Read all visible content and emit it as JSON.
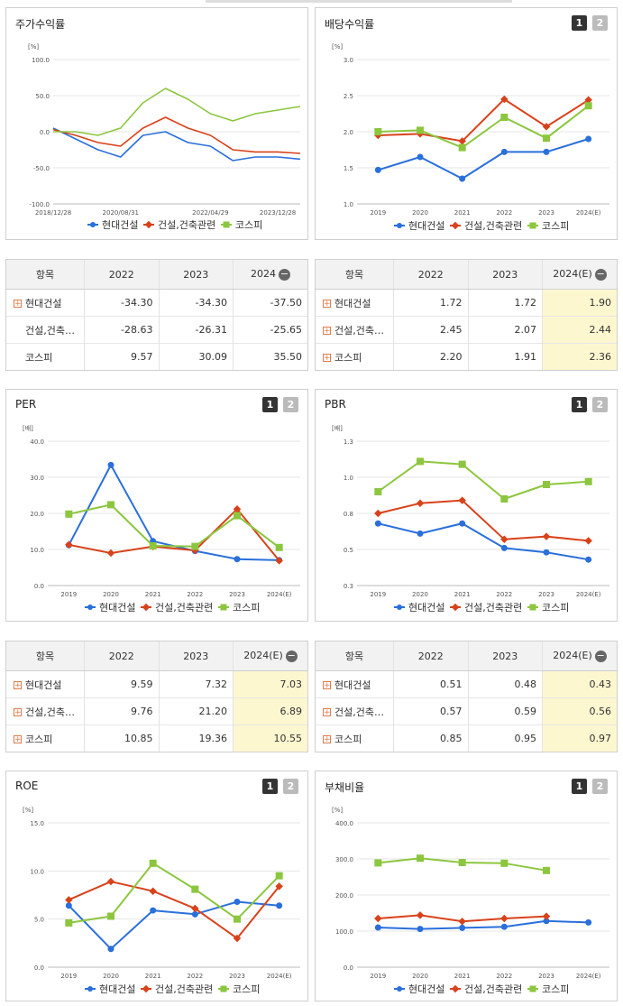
{
  "colors": {
    "hyundai": "#2a6fdb",
    "construction": "#d8421b",
    "kospi": "#8cc63f"
  },
  "legend": [
    "현대건설",
    "건설,건축관련",
    "코스피"
  ],
  "charts": {
    "stock": {
      "title": "주가수익률",
      "unit": "[%]",
      "yticks": [
        "100.0",
        "50.0",
        "0.0",
        "-50.0",
        "-100.0"
      ],
      "xticks": [
        "2018/12/28",
        "2020/08/31",
        "2022/04/29",
        "2023/12/28"
      ]
    },
    "dividend": {
      "title": "배당수익률",
      "unit": "[%]",
      "yticks": [
        "3.0",
        "2.5",
        "2.0",
        "1.5",
        "1.0"
      ],
      "xticks": [
        "2019",
        "2020",
        "2021",
        "2022",
        "2023",
        "2024(E)"
      ]
    },
    "per": {
      "title": "PER",
      "unit": "[배]",
      "yticks": [
        "40.0",
        "30.0",
        "20.0",
        "10.0",
        "0.0"
      ],
      "xticks": [
        "2019",
        "2020",
        "2021",
        "2022",
        "2023",
        "2024(E)"
      ]
    },
    "pbr": {
      "title": "PBR",
      "unit": "[배]",
      "yticks": [
        "1.3",
        "1.0",
        "0.8",
        "0.5",
        "0.3"
      ],
      "xticks": [
        "2019",
        "2020",
        "2021",
        "2022",
        "2023",
        "2024(E)"
      ]
    },
    "roe": {
      "title": "ROE",
      "unit": "[%]",
      "yticks": [
        "15.0",
        "10.0",
        "5.0",
        "0.0"
      ],
      "xticks": [
        "2019",
        "2020",
        "2021",
        "2022",
        "2023",
        "2024(E)"
      ]
    },
    "debt": {
      "title": "부채비율",
      "unit": "[%]",
      "yticks": [
        "400.0",
        "300.0",
        "200.0",
        "100.0",
        "0.0"
      ],
      "xticks": [
        "2019",
        "2020",
        "2021",
        "2022",
        "2023",
        "2024(E)"
      ]
    }
  },
  "buttons": {
    "one": "1",
    "two": "2"
  },
  "tables": {
    "stock": {
      "headers": [
        "항목",
        "2022",
        "2023",
        "2024"
      ],
      "rows": [
        {
          "name": "현대건설",
          "values": [
            "-34.30",
            "-34.30",
            "-37.50"
          ]
        },
        {
          "name": "건설,건축…",
          "values": [
            "-28.63",
            "-26.31",
            "-25.65"
          ]
        },
        {
          "name": "코스피",
          "values": [
            "9.57",
            "30.09",
            "35.50"
          ]
        }
      ]
    },
    "dividend": {
      "headers": [
        "항목",
        "2022",
        "2023",
        "2024(E)"
      ],
      "rows": [
        {
          "name": "현대건설",
          "values": [
            "1.72",
            "1.72",
            "1.90"
          ]
        },
        {
          "name": "건설,건축…",
          "values": [
            "2.45",
            "2.07",
            "2.44"
          ]
        },
        {
          "name": "코스피",
          "values": [
            "2.20",
            "1.91",
            "2.36"
          ]
        }
      ]
    },
    "per": {
      "headers": [
        "항목",
        "2022",
        "2023",
        "2024(E)"
      ],
      "rows": [
        {
          "name": "현대건설",
          "values": [
            "9.59",
            "7.32",
            "7.03"
          ]
        },
        {
          "name": "건설,건축…",
          "values": [
            "9.76",
            "21.20",
            "6.89"
          ]
        },
        {
          "name": "코스피",
          "values": [
            "10.85",
            "19.36",
            "10.55"
          ]
        }
      ]
    },
    "pbr": {
      "headers": [
        "항목",
        "2022",
        "2023",
        "2024(E)"
      ],
      "rows": [
        {
          "name": "현대건설",
          "values": [
            "0.51",
            "0.48",
            "0.43"
          ]
        },
        {
          "name": "건설,건축…",
          "values": [
            "0.57",
            "0.59",
            "0.56"
          ]
        },
        {
          "name": "코스피",
          "values": [
            "0.85",
            "0.95",
            "0.97"
          ]
        }
      ]
    }
  },
  "chart_data": [
    {
      "type": "line",
      "id": "stock",
      "x": [
        "2018/12/28",
        "2019/06",
        "2020/01",
        "2020/08/31",
        "2021/02",
        "2021/06",
        "2021/10",
        "2022/04/29",
        "2022/10",
        "2023/06",
        "2023/12/28",
        "2024/06"
      ],
      "ylim": [
        -100,
        100
      ],
      "series": [
        {
          "name": "현대건설",
          "values": [
            5,
            -10,
            -25,
            -35,
            -5,
            0,
            -15,
            -20,
            -40,
            -35,
            -35,
            -38
          ]
        },
        {
          "name": "건설,건축관련",
          "values": [
            3,
            -5,
            -15,
            -20,
            5,
            20,
            5,
            -5,
            -25,
            -28,
            -28,
            -30
          ]
        },
        {
          "name": "코스피",
          "values": [
            0,
            0,
            -5,
            5,
            40,
            60,
            45,
            25,
            15,
            25,
            30,
            35
          ]
        }
      ]
    },
    {
      "type": "line",
      "id": "dividend",
      "categories": [
        "2019",
        "2020",
        "2021",
        "2022",
        "2023",
        "2024(E)"
      ],
      "ylim": [
        1.0,
        3.0
      ],
      "series": [
        {
          "name": "현대건설",
          "values": [
            1.47,
            1.65,
            1.35,
            1.72,
            1.72,
            1.9
          ]
        },
        {
          "name": "건설,건축관련",
          "values": [
            1.95,
            1.97,
            1.87,
            2.45,
            2.07,
            2.44
          ]
        },
        {
          "name": "코스피",
          "values": [
            2.0,
            2.02,
            1.78,
            2.2,
            1.91,
            2.36
          ]
        }
      ]
    },
    {
      "type": "line",
      "id": "per",
      "categories": [
        "2019",
        "2020",
        "2021",
        "2022",
        "2023",
        "2024(E)"
      ],
      "ylim": [
        0,
        40
      ],
      "series": [
        {
          "name": "현대건설",
          "values": [
            11.2,
            33.4,
            12.3,
            9.59,
            7.32,
            7.03
          ]
        },
        {
          "name": "건설,건축관련",
          "values": [
            11.3,
            9.0,
            10.8,
            9.76,
            21.2,
            6.89
          ]
        },
        {
          "name": "코스피",
          "values": [
            19.8,
            22.4,
            11.0,
            10.85,
            19.36,
            10.55
          ]
        }
      ]
    },
    {
      "type": "line",
      "id": "pbr",
      "categories": [
        "2019",
        "2020",
        "2021",
        "2022",
        "2023",
        "2024(E)"
      ],
      "ylim": [
        0.25,
        1.25
      ],
      "series": [
        {
          "name": "현대건설",
          "values": [
            0.68,
            0.61,
            0.68,
            0.51,
            0.48,
            0.43
          ]
        },
        {
          "name": "건설,건축관련",
          "values": [
            0.75,
            0.82,
            0.84,
            0.57,
            0.59,
            0.56
          ]
        },
        {
          "name": "코스피",
          "values": [
            0.9,
            1.11,
            1.09,
            0.85,
            0.95,
            0.97
          ]
        }
      ]
    },
    {
      "type": "line",
      "id": "roe",
      "categories": [
        "2019",
        "2020",
        "2021",
        "2022",
        "2023",
        "2024(E)"
      ],
      "ylim": [
        0,
        15
      ],
      "series": [
        {
          "name": "현대건설",
          "values": [
            6.4,
            1.9,
            5.9,
            5.5,
            6.8,
            6.4
          ]
        },
        {
          "name": "건설,건축관련",
          "values": [
            7.0,
            8.9,
            7.9,
            6.1,
            3.0,
            8.4
          ]
        },
        {
          "name": "코스피",
          "values": [
            4.6,
            5.3,
            10.8,
            8.1,
            5.0,
            9.5
          ]
        }
      ]
    },
    {
      "type": "line",
      "id": "debt",
      "categories": [
        "2019",
        "2020",
        "2021",
        "2022",
        "2023",
        "2024(E)"
      ],
      "ylim": [
        0,
        400
      ],
      "series": [
        {
          "name": "현대건설",
          "values": [
            110,
            106,
            109,
            112,
            128,
            124
          ]
        },
        {
          "name": "건설,건축관련",
          "values": [
            135,
            144,
            127,
            135,
            141,
            null
          ]
        },
        {
          "name": "코스피",
          "values": [
            289,
            302,
            290,
            288,
            268,
            null
          ]
        }
      ]
    }
  ]
}
